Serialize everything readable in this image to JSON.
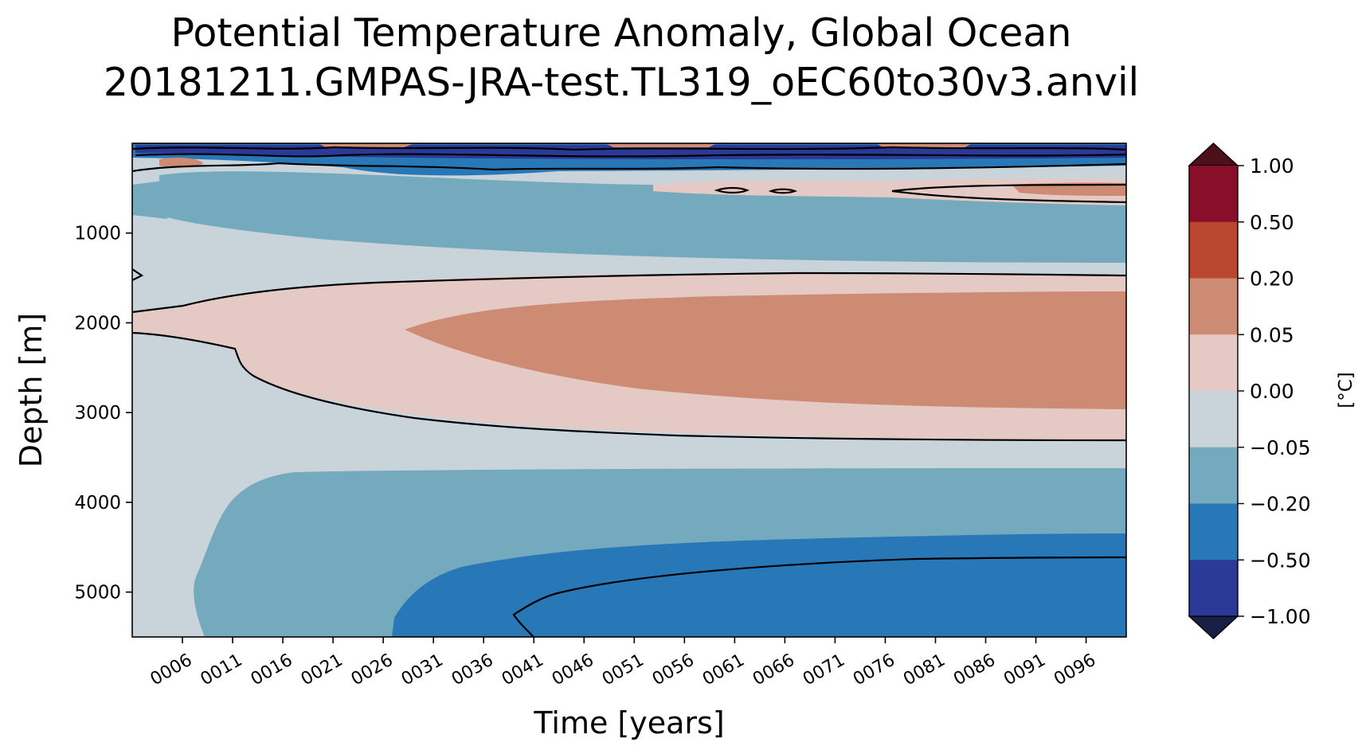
{
  "title_line1": "Potential Temperature Anomaly, Global Ocean",
  "title_line2": "20181211.GMPAS-JRA-test.TL319_oEC60to30v3.anvil",
  "chart_data": {
    "type": "heatmap",
    "subtype": "filled-contour (Hovmoller, time vs depth)",
    "xlabel": "Time [years]",
    "ylabel": "Depth [m]",
    "x_range_years": [
      1,
      100
    ],
    "y_range_m": [
      0,
      5500
    ],
    "y_inverted": true,
    "x_ticks": [
      "0006",
      "0011",
      "0016",
      "0021",
      "0026",
      "0031",
      "0036",
      "0041",
      "0046",
      "0051",
      "0056",
      "0061",
      "0066",
      "0071",
      "0076",
      "0081",
      "0086",
      "0091",
      "0096"
    ],
    "y_ticks": [
      1000,
      2000,
      3000,
      4000,
      5000
    ],
    "colorbar": {
      "unit": "[°C]",
      "levels": [
        -1.0,
        -0.5,
        -0.2,
        -0.05,
        0.0,
        0.05,
        0.2,
        0.5,
        1.0
      ],
      "tick_labels": [
        "1.00",
        "0.50",
        "0.20",
        "0.05",
        "0.00",
        "−0.05",
        "−0.20",
        "−0.50",
        "−1.00"
      ],
      "colors": [
        "#2a3a96",
        "#2878b8",
        "#74a9be",
        "#c9d3da",
        "#e5c9c4",
        "#cd8b74",
        "#b9472f",
        "#870f2a"
      ],
      "extend_low_color": "#1a1f45",
      "extend_high_color": "#4d0f1a"
    },
    "regions": [
      {
        "anomaly_range": "0.00 to 0.05",
        "description": "positive anomaly band",
        "depth_m": [
          1500,
          3300
        ],
        "years": [
          1,
          100
        ]
      },
      {
        "anomaly_range": "0.05 to 0.20",
        "description": "warm core",
        "depth_m": [
          1700,
          2950
        ],
        "years": [
          28,
          100
        ]
      },
      {
        "anomaly_range": "-0.20 to -0.05",
        "description": "intermediate cooling",
        "depth_m": [
          350,
          1350
        ],
        "years": [
          1,
          100
        ]
      },
      {
        "anomaly_range": "-0.20 to -0.05",
        "description": "deep cooling",
        "depth_m": [
          3600,
          5500
        ],
        "years": [
          8,
          100
        ]
      },
      {
        "anomaly_range": "-0.50 to -0.20",
        "description": "abyssal cooling",
        "depth_m": [
          4350,
          5500
        ],
        "years": [
          27,
          100
        ]
      },
      {
        "anomaly_range": "-0.50 to -0.20",
        "description": "near-surface cooling",
        "depth_m": [
          0,
          350
        ],
        "years": [
          1,
          100
        ]
      }
    ]
  }
}
